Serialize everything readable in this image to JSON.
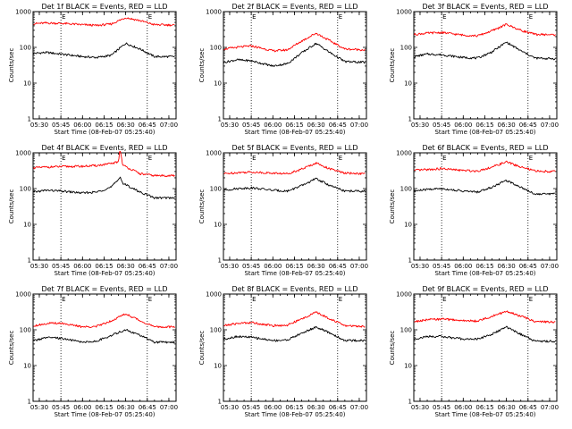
{
  "figure": {
    "xaxis_label": "Start Time (08-Feb-07 05:25:40)",
    "yaxis_label": "Counts/sec",
    "xtick_labels": [
      "05:30",
      "05:45",
      "06:00",
      "06:15",
      "06:30",
      "06:45",
      "07:00"
    ],
    "ytick_labels": [
      "1",
      "10",
      "100",
      "1000"
    ],
    "marker_labels": [
      "E",
      "E"
    ],
    "series_colors": {
      "events": "#000000",
      "lld": "#ff0000"
    }
  },
  "chart_data": [
    {
      "type": "line",
      "title": "Det 1f BLACK = Events, RED = LLD",
      "xlabel": "Start Time (08-Feb-07 05:25:40)",
      "ylabel": "Counts/sec",
      "yscale": "log",
      "xlim": [
        "05:25:40",
        "07:05:00"
      ],
      "ylim": [
        1,
        1000
      ],
      "xticks": [
        "05:30",
        "05:45",
        "06:00",
        "06:15",
        "06:30",
        "06:45",
        "07:00"
      ],
      "yticks": [
        1,
        10,
        100,
        1000
      ],
      "reference_lines_x": [
        "05:45",
        "06:45"
      ],
      "grid": false,
      "legend": "none",
      "series": [
        {
          "color": "#000000",
          "x": [
            "05:26",
            "05:35",
            "05:45",
            "06:00",
            "06:10",
            "06:20",
            "06:30",
            "06:40",
            "06:50",
            "07:04"
          ],
          "values": [
            68,
            72,
            65,
            55,
            52,
            60,
            130,
            90,
            55,
            55
          ]
        },
        {
          "color": "#ff0000",
          "x": [
            "05:26",
            "05:35",
            "05:45",
            "06:00",
            "06:10",
            "06:20",
            "06:30",
            "06:40",
            "06:50",
            "07:04"
          ],
          "values": [
            460,
            480,
            470,
            430,
            410,
            450,
            680,
            560,
            430,
            420
          ]
        }
      ]
    },
    {
      "type": "line",
      "title": "Det 2f BLACK = Events, RED = LLD",
      "xlabel": "Start Time (08-Feb-07 05:25:40)",
      "ylabel": "Counts/sec",
      "yscale": "log",
      "xlim": [
        "05:25:40",
        "07:05:00"
      ],
      "ylim": [
        1,
        1000
      ],
      "xticks": [
        "05:30",
        "05:45",
        "06:00",
        "06:15",
        "06:30",
        "06:45",
        "07:00"
      ],
      "yticks": [
        1,
        10,
        100,
        1000
      ],
      "reference_lines_x": [
        "05:45",
        "06:45"
      ],
      "grid": false,
      "legend": "none",
      "series": [
        {
          "color": "#000000",
          "x": [
            "05:26",
            "05:35",
            "05:45",
            "06:00",
            "06:10",
            "06:20",
            "06:30",
            "06:40",
            "06:50",
            "07:04"
          ],
          "values": [
            38,
            45,
            42,
            30,
            35,
            70,
            130,
            70,
            40,
            38
          ]
        },
        {
          "color": "#ff0000",
          "x": [
            "05:26",
            "05:35",
            "05:45",
            "06:00",
            "06:10",
            "06:20",
            "06:30",
            "06:40",
            "06:50",
            "07:04"
          ],
          "values": [
            90,
            100,
            110,
            80,
            85,
            150,
            250,
            150,
            90,
            85
          ]
        }
      ]
    },
    {
      "type": "line",
      "title": "Det 3f BLACK = Events, RED = LLD",
      "xlabel": "Start Time (08-Feb-07 05:25:40)",
      "ylabel": "Counts/sec",
      "yscale": "log",
      "xlim": [
        "05:25:40",
        "07:05:00"
      ],
      "ylim": [
        1,
        1000
      ],
      "xticks": [
        "05:30",
        "05:45",
        "06:00",
        "06:15",
        "06:30",
        "06:45",
        "07:00"
      ],
      "yticks": [
        1,
        10,
        100,
        1000
      ],
      "reference_lines_x": [
        "05:45",
        "06:45"
      ],
      "grid": false,
      "legend": "none",
      "series": [
        {
          "color": "#000000",
          "x": [
            "05:26",
            "05:35",
            "05:45",
            "06:00",
            "06:10",
            "06:20",
            "06:30",
            "06:40",
            "06:50",
            "07:04"
          ],
          "values": [
            55,
            65,
            62,
            52,
            50,
            75,
            140,
            80,
            50,
            48
          ]
        },
        {
          "color": "#ff0000",
          "x": [
            "05:26",
            "05:35",
            "05:45",
            "06:00",
            "06:10",
            "06:20",
            "06:30",
            "06:40",
            "06:50",
            "07:04"
          ],
          "values": [
            230,
            250,
            260,
            220,
            210,
            290,
            440,
            300,
            230,
            225
          ]
        }
      ]
    },
    {
      "type": "line",
      "title": "Det 4f BLACK = Events, RED = LLD",
      "xlabel": "Start Time (08-Feb-07 05:25:40)",
      "ylabel": "Counts/sec",
      "yscale": "log",
      "xlim": [
        "05:25:40",
        "07:05:00"
      ],
      "ylim": [
        1,
        1000
      ],
      "xticks": [
        "05:30",
        "05:45",
        "06:00",
        "06:15",
        "06:30",
        "06:45",
        "07:00"
      ],
      "yticks": [
        1,
        10,
        100,
        1000
      ],
      "reference_lines_x": [
        "05:45",
        "06:45"
      ],
      "grid": false,
      "legend": "none",
      "series": [
        {
          "color": "#000000",
          "x": [
            "05:26",
            "05:35",
            "05:45",
            "06:00",
            "06:10",
            "06:20",
            "06:25",
            "06:26",
            "06:28",
            "06:40",
            "06:50",
            "07:04"
          ],
          "values": [
            80,
            90,
            85,
            75,
            80,
            110,
            180,
            220,
            140,
            80,
            55,
            55
          ]
        },
        {
          "color": "#ff0000",
          "x": [
            "05:26",
            "05:35",
            "05:45",
            "06:00",
            "06:10",
            "06:20",
            "06:25",
            "06:26",
            "06:28",
            "06:40",
            "06:50",
            "07:04"
          ],
          "values": [
            380,
            400,
            410,
            420,
            440,
            500,
            560,
            1300,
            450,
            260,
            230,
            230
          ]
        }
      ]
    },
    {
      "type": "line",
      "title": "Det 5f BLACK = Events, RED = LLD",
      "xlabel": "Start Time (08-Feb-07 05:25:40)",
      "ylabel": "Counts/sec",
      "yscale": "log",
      "xlim": [
        "05:25:40",
        "07:05:00"
      ],
      "ylim": [
        1,
        1000
      ],
      "xticks": [
        "05:30",
        "05:45",
        "06:00",
        "06:15",
        "06:30",
        "06:45",
        "07:00"
      ],
      "yticks": [
        1,
        10,
        100,
        1000
      ],
      "reference_lines_x": [
        "05:45",
        "06:45"
      ],
      "grid": false,
      "legend": "none",
      "series": [
        {
          "color": "#000000",
          "x": [
            "05:26",
            "05:35",
            "05:45",
            "06:00",
            "06:10",
            "06:20",
            "06:30",
            "06:40",
            "06:50",
            "07:04"
          ],
          "values": [
            90,
            100,
            105,
            90,
            85,
            120,
            190,
            120,
            85,
            85
          ]
        },
        {
          "color": "#ff0000",
          "x": [
            "05:26",
            "05:35",
            "05:45",
            "06:00",
            "06:10",
            "06:20",
            "06:30",
            "06:40",
            "06:50",
            "07:04"
          ],
          "values": [
            260,
            280,
            290,
            270,
            260,
            350,
            520,
            350,
            270,
            260
          ]
        }
      ]
    },
    {
      "type": "line",
      "title": "Det 6f BLACK = Events, RED = LLD",
      "xlabel": "Start Time (08-Feb-07 05:25:40)",
      "ylabel": "Counts/sec",
      "yscale": "log",
      "xlim": [
        "05:25:40",
        "07:05:00"
      ],
      "ylim": [
        1,
        1000
      ],
      "xticks": [
        "05:30",
        "05:45",
        "06:00",
        "06:15",
        "06:30",
        "06:45",
        "07:00"
      ],
      "yticks": [
        1,
        10,
        100,
        1000
      ],
      "reference_lines_x": [
        "05:45",
        "06:45"
      ],
      "grid": false,
      "legend": "none",
      "series": [
        {
          "color": "#000000",
          "x": [
            "05:26",
            "05:35",
            "05:45",
            "06:00",
            "06:10",
            "06:20",
            "06:30",
            "06:40",
            "06:50",
            "07:04"
          ],
          "values": [
            85,
            95,
            100,
            85,
            80,
            110,
            170,
            110,
            70,
            72
          ]
        },
        {
          "color": "#ff0000",
          "x": [
            "05:26",
            "05:35",
            "05:45",
            "06:00",
            "06:10",
            "06:20",
            "06:30",
            "06:40",
            "06:50",
            "07:04"
          ],
          "values": [
            320,
            340,
            360,
            320,
            310,
            400,
            560,
            400,
            310,
            300
          ]
        }
      ]
    },
    {
      "type": "line",
      "title": "Det 7f BLACK = Events, RED = LLD",
      "xlabel": "Start Time (08-Feb-07 05:25:40)",
      "ylabel": "Counts/sec",
      "yscale": "log",
      "xlim": [
        "05:25:40",
        "07:05:00"
      ],
      "ylim": [
        1,
        1000
      ],
      "xticks": [
        "05:30",
        "05:45",
        "06:00",
        "06:15",
        "06:30",
        "06:45",
        "07:00"
      ],
      "yticks": [
        1,
        10,
        100,
        1000
      ],
      "reference_lines_x": [
        "05:45",
        "06:45"
      ],
      "grid": false,
      "legend": "none",
      "series": [
        {
          "color": "#000000",
          "x": [
            "05:26",
            "05:35",
            "05:45",
            "06:00",
            "06:10",
            "06:20",
            "06:30",
            "06:40",
            "06:50",
            "07:04"
          ],
          "values": [
            50,
            60,
            58,
            45,
            48,
            70,
            100,
            70,
            45,
            45
          ]
        },
        {
          "color": "#ff0000",
          "x": [
            "05:26",
            "05:35",
            "05:45",
            "06:00",
            "06:10",
            "06:20",
            "06:30",
            "06:40",
            "06:50",
            "07:04"
          ],
          "values": [
            130,
            150,
            155,
            120,
            125,
            180,
            280,
            180,
            120,
            120
          ]
        }
      ]
    },
    {
      "type": "line",
      "title": "Det 8f BLACK = Events, RED = LLD",
      "xlabel": "Start Time (08-Feb-07 05:25:40)",
      "ylabel": "Counts/sec",
      "yscale": "log",
      "xlim": [
        "05:25:40",
        "07:05:00"
      ],
      "ylim": [
        1,
        1000
      ],
      "xticks": [
        "05:30",
        "05:45",
        "06:00",
        "06:15",
        "06:30",
        "06:45",
        "07:00"
      ],
      "yticks": [
        1,
        10,
        100,
        1000
      ],
      "reference_lines_x": [
        "05:45",
        "06:45"
      ],
      "grid": false,
      "legend": "none",
      "series": [
        {
          "color": "#000000",
          "x": [
            "05:26",
            "05:35",
            "05:45",
            "06:00",
            "06:10",
            "06:20",
            "06:30",
            "06:40",
            "06:50",
            "07:04"
          ],
          "values": [
            55,
            65,
            62,
            50,
            52,
            80,
            120,
            80,
            50,
            50
          ]
        },
        {
          "color": "#ff0000",
          "x": [
            "05:26",
            "05:35",
            "05:45",
            "06:00",
            "06:10",
            "06:20",
            "06:30",
            "06:40",
            "06:50",
            "07:04"
          ],
          "values": [
            130,
            150,
            160,
            130,
            135,
            200,
            310,
            200,
            130,
            125
          ]
        }
      ]
    },
    {
      "type": "line",
      "title": "Det 9f BLACK = Events, RED = LLD",
      "xlabel": "Start Time (08-Feb-07 05:25:40)",
      "ylabel": "Counts/sec",
      "yscale": "log",
      "xlim": [
        "05:25:40",
        "07:05:00"
      ],
      "ylim": [
        1,
        1000
      ],
      "xticks": [
        "05:30",
        "05:45",
        "06:00",
        "06:15",
        "06:30",
        "06:45",
        "07:00"
      ],
      "yticks": [
        1,
        10,
        100,
        1000
      ],
      "reference_lines_x": [
        "05:45",
        "06:45"
      ],
      "grid": false,
      "legend": "none",
      "series": [
        {
          "color": "#000000",
          "x": [
            "05:26",
            "05:35",
            "05:45",
            "06:00",
            "06:10",
            "06:20",
            "06:30",
            "06:40",
            "06:50",
            "07:04"
          ],
          "values": [
            55,
            65,
            65,
            55,
            55,
            75,
            120,
            75,
            48,
            48
          ]
        },
        {
          "color": "#ff0000",
          "x": [
            "05:26",
            "05:35",
            "05:45",
            "06:00",
            "06:10",
            "06:20",
            "06:30",
            "06:40",
            "06:50",
            "07:04"
          ],
          "values": [
            170,
            190,
            200,
            180,
            175,
            240,
            330,
            240,
            170,
            165
          ]
        }
      ]
    }
  ]
}
